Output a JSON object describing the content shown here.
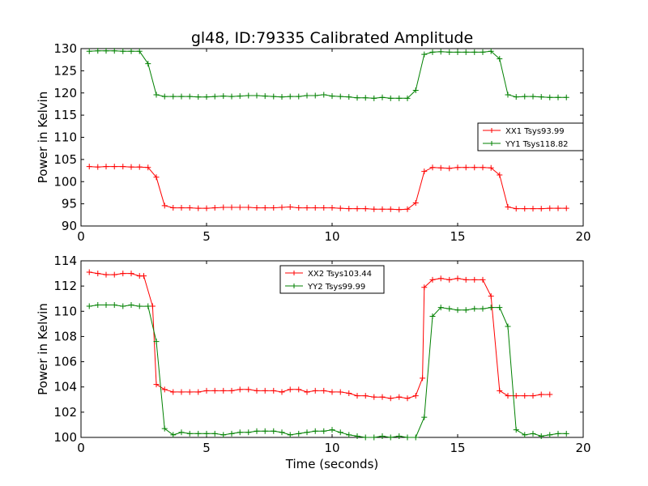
{
  "figure": {
    "title": "gl48, ID:79335 Calibrated Amplitude",
    "xlabel": "Time (seconds)"
  },
  "chart_data": [
    {
      "type": "line",
      "title": "gl48, ID:79335 Calibrated Amplitude",
      "xlabel": "",
      "ylabel": "Power in Kelvin",
      "xlim": [
        0,
        20
      ],
      "ylim": [
        90,
        130
      ],
      "xticks": [
        0,
        5,
        10,
        15,
        20
      ],
      "yticks": [
        90,
        95,
        100,
        105,
        110,
        115,
        120,
        125,
        130
      ],
      "grid": false,
      "legend_position": "right",
      "x": [
        0.33,
        0.67,
        1.0,
        1.33,
        1.67,
        2.0,
        2.33,
        2.67,
        3.0,
        3.33,
        3.67,
        4.0,
        4.33,
        4.67,
        5.0,
        5.33,
        5.67,
        6.0,
        6.33,
        6.67,
        7.0,
        7.33,
        7.67,
        8.0,
        8.33,
        8.67,
        9.0,
        9.33,
        9.67,
        10.0,
        10.33,
        10.67,
        11.0,
        11.33,
        11.67,
        12.0,
        12.33,
        12.67,
        13.0,
        13.33,
        13.67,
        14.0,
        14.33,
        14.67,
        15.0,
        15.33,
        15.67,
        16.0,
        16.33,
        16.67,
        17.0,
        17.33,
        17.67,
        18.0,
        18.33,
        18.67,
        19.0,
        19.33
      ],
      "series": [
        {
          "name": "XX1 Tsys93.99",
          "color": "#ff0000",
          "values": [
            103.4,
            103.3,
            103.4,
            103.4,
            103.4,
            103.3,
            103.3,
            103.2,
            101.0,
            94.6,
            94.1,
            94.1,
            94.1,
            94.0,
            94.0,
            94.1,
            94.2,
            94.2,
            94.2,
            94.2,
            94.1,
            94.1,
            94.1,
            94.2,
            94.3,
            94.1,
            94.1,
            94.1,
            94.1,
            94.1,
            94.0,
            93.9,
            93.9,
            93.9,
            93.8,
            93.8,
            93.8,
            93.7,
            93.8,
            95.2,
            102.3,
            103.2,
            103.1,
            103.0,
            103.2,
            103.2,
            103.2,
            103.2,
            103.1,
            101.5,
            94.3,
            93.9,
            93.9,
            93.9,
            93.9,
            94.0,
            94.0,
            94.0
          ]
        },
        {
          "name": "YY1 Tsys118.82",
          "color": "#008000",
          "values": [
            129.4,
            129.5,
            129.5,
            129.5,
            129.4,
            129.4,
            129.4,
            126.6,
            119.6,
            119.2,
            119.2,
            119.2,
            119.2,
            119.1,
            119.1,
            119.2,
            119.3,
            119.2,
            119.3,
            119.4,
            119.4,
            119.3,
            119.2,
            119.1,
            119.2,
            119.2,
            119.4,
            119.4,
            119.6,
            119.3,
            119.2,
            119.1,
            118.9,
            118.9,
            118.8,
            119.0,
            118.8,
            118.8,
            118.8,
            120.6,
            128.7,
            129.2,
            129.3,
            129.2,
            129.2,
            129.2,
            129.2,
            129.2,
            129.4,
            127.7,
            119.6,
            119.1,
            119.2,
            119.2,
            119.1,
            119.0,
            119.0,
            119.0
          ]
        }
      ]
    },
    {
      "type": "line",
      "title": "",
      "xlabel": "Time (seconds)",
      "ylabel": "Power in Kelvin",
      "xlim": [
        0,
        20
      ],
      "ylim": [
        100,
        114
      ],
      "xticks": [
        0,
        5,
        10,
        15,
        20
      ],
      "yticks": [
        100,
        102,
        104,
        106,
        108,
        110,
        112,
        114
      ],
      "grid": false,
      "legend_position": "top-center",
      "x": [
        0.33,
        0.67,
        1.0,
        1.33,
        1.67,
        2.0,
        2.33,
        2.67,
        3.0,
        3.33,
        3.67,
        4.0,
        4.33,
        4.67,
        5.0,
        5.33,
        5.67,
        6.0,
        6.33,
        6.67,
        7.0,
        7.33,
        7.67,
        8.0,
        8.33,
        8.67,
        9.0,
        9.33,
        9.67,
        10.0,
        10.33,
        10.67,
        11.0,
        11.33,
        11.67,
        12.0,
        12.33,
        12.67,
        13.0,
        13.33,
        13.67,
        14.0,
        14.33,
        14.67,
        15.0,
        15.33,
        15.67,
        16.0,
        16.33,
        16.67,
        17.0,
        17.33,
        17.67,
        18.0,
        18.33,
        18.67,
        19.0,
        19.33
      ],
      "series": [
        {
          "name": "XX2 Tsys103.44",
          "color": "#ff0000",
          "values": [
            113.1,
            113.0,
            112.9,
            112.9,
            113.0,
            113.0,
            112.8,
            112.8,
            110.4,
            104.2,
            103.8,
            103.6,
            103.6,
            103.6,
            103.6,
            103.7,
            103.7,
            103.7,
            103.7,
            103.8,
            103.8,
            103.7,
            103.7,
            103.7,
            103.6,
            103.8,
            103.8,
            103.6,
            103.7,
            103.7,
            103.6,
            103.6,
            103.5,
            103.3,
            103.3,
            103.2,
            103.2,
            103.1,
            103.2,
            103.1,
            103.3,
            104.7,
            111.9,
            112.5,
            112.6,
            112.5,
            112.6,
            112.5,
            112.5,
            112.5,
            111.2,
            103.7,
            103.3,
            103.3,
            103.3,
            103.3,
            103.4,
            103.4
          ],
          "x": [
            0.33,
            0.67,
            1.0,
            1.33,
            1.67,
            2.0,
            2.33,
            2.5,
            2.85,
            3.0,
            3.33,
            3.67,
            4.0,
            4.33,
            4.67,
            5.0,
            5.33,
            5.67,
            6.0,
            6.33,
            6.67,
            7.0,
            7.33,
            7.67,
            8.0,
            8.33,
            8.67,
            9.0,
            9.33,
            9.67,
            10.0,
            10.33,
            10.67,
            11.0,
            11.33,
            11.67,
            12.0,
            12.33,
            12.67,
            13.0,
            13.33,
            13.6,
            13.67,
            14.0,
            14.33,
            14.67,
            15.0,
            15.33,
            15.67,
            16.0,
            16.33,
            16.67,
            17.0,
            17.33,
            17.67,
            18.0,
            18.33,
            18.67
          ]
        },
        {
          "name": "YY2 Tsys99.99",
          "color": "#008000",
          "values": [
            110.4,
            110.5,
            110.5,
            110.5,
            110.4,
            110.5,
            110.4,
            110.4,
            107.6,
            100.7,
            100.2,
            100.4,
            100.3,
            100.3,
            100.3,
            100.3,
            100.2,
            100.3,
            100.4,
            100.4,
            100.5,
            100.5,
            100.5,
            100.4,
            100.2,
            100.3,
            100.4,
            100.5,
            100.5,
            100.6,
            100.4,
            100.2,
            100.1,
            100.0,
            100.0,
            100.1,
            100.0,
            100.1,
            100.0,
            100.0,
            101.6,
            109.6,
            110.3,
            110.2,
            110.1,
            110.1,
            110.2,
            110.2,
            110.3,
            110.3,
            108.8,
            100.6,
            100.2,
            100.3,
            100.1,
            100.2,
            100.3,
            100.3
          ]
        }
      ]
    }
  ]
}
